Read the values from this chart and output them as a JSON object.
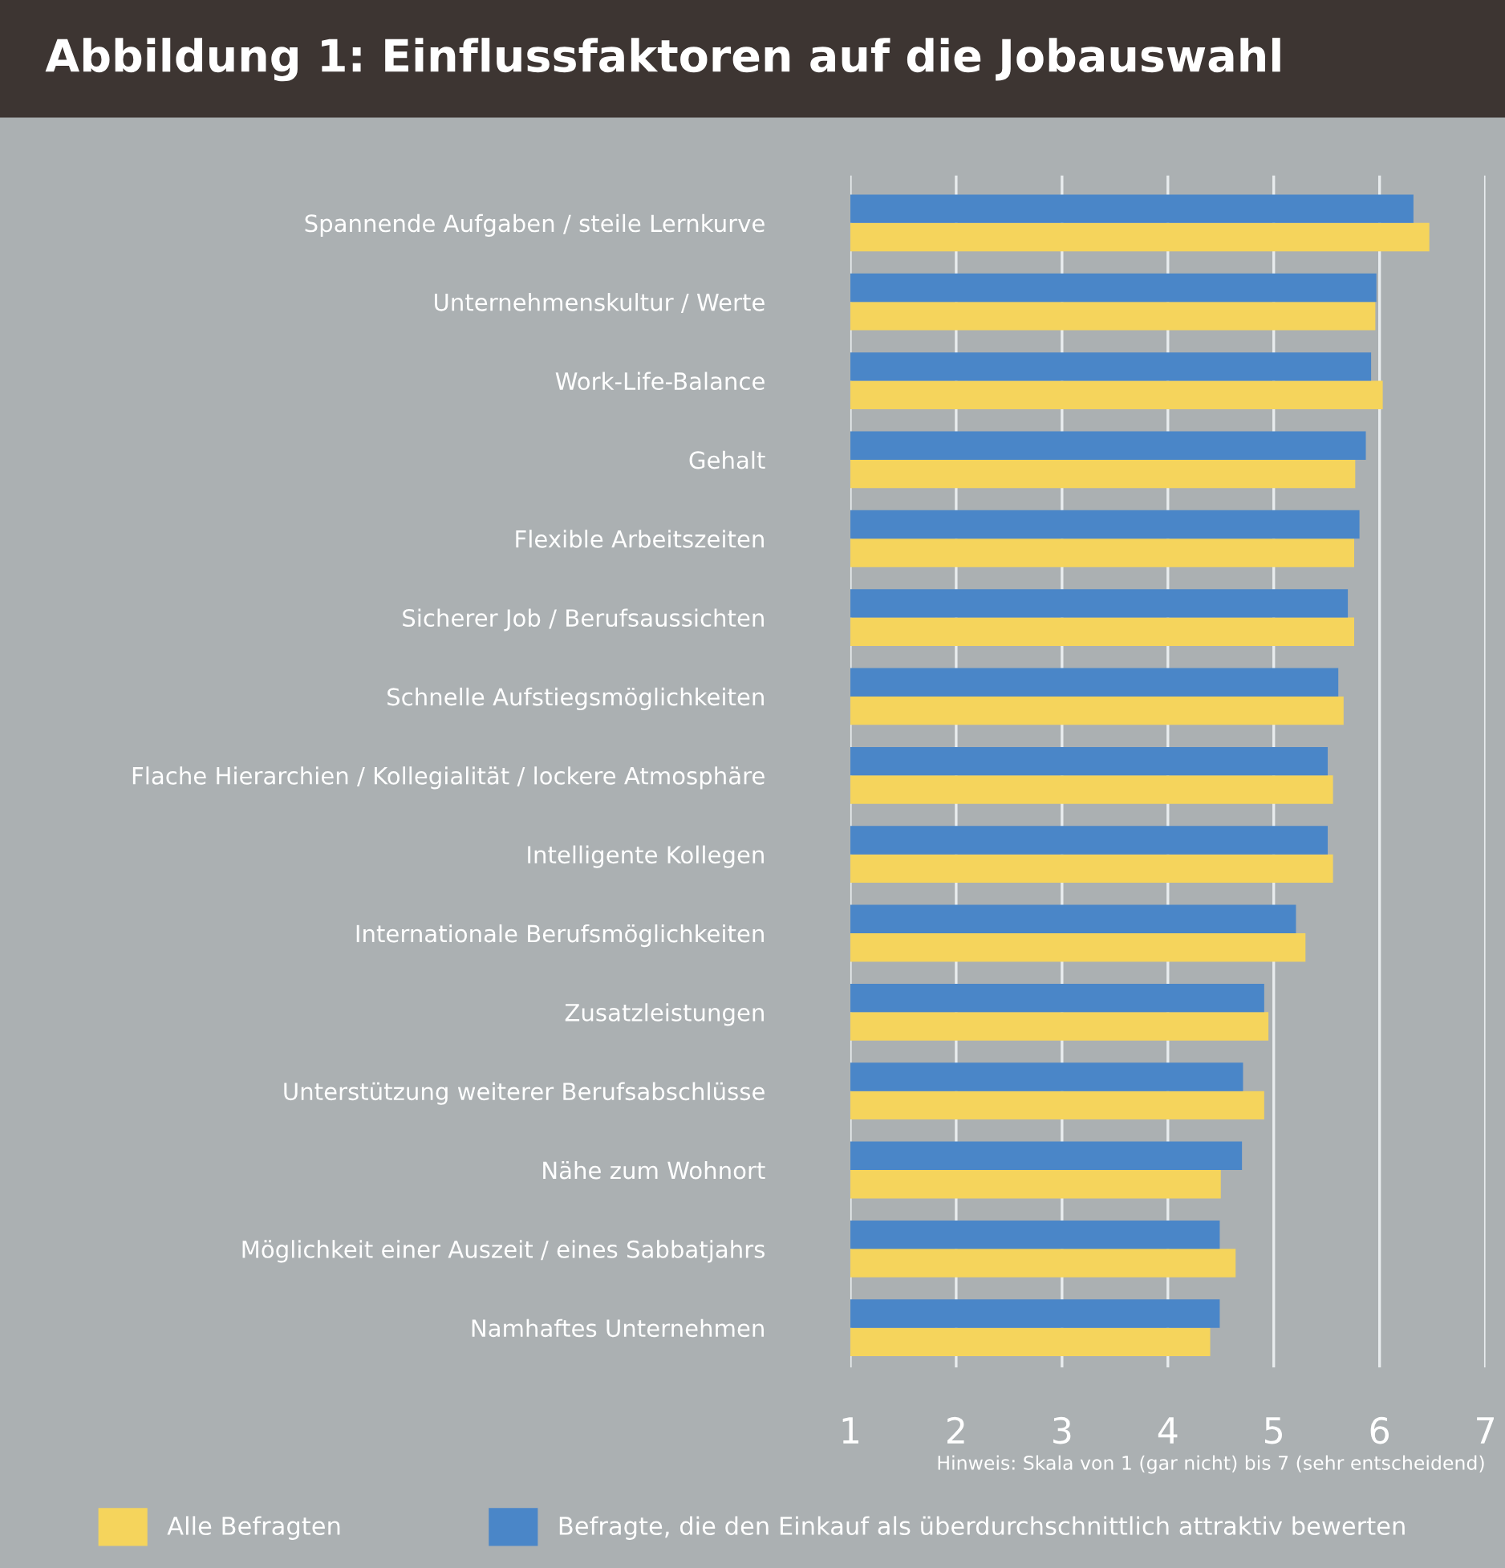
{
  "chart_data": {
    "type": "bar",
    "orientation": "horizontal",
    "title": "Abbildung 1: Einflussfaktoren auf die Jobauswahl",
    "categories": [
      "Spannende Aufgaben / steile Lernkurve",
      "Unternehmenskultur / Werte",
      "Work-Life-Balance",
      "Gehalt",
      "Flexible Arbeitszeiten",
      "Sicherer Job / Berufsaussichten",
      "Schnelle Aufstiegsmöglichkeiten",
      "Flache Hierarchien / Kollegialität / lockere Atmosphäre",
      "Intelligente Kollegen",
      "Internationale Berufsmöglichkeiten",
      "Zusatzleistungen",
      "Unterstützung weiterer Berufsabschlüsse",
      "Nähe zum Wohnort",
      "Möglichkeit einer Auszeit / eines Sabbatjahrs",
      "Namhaftes Unternehmen"
    ],
    "series": [
      {
        "name": "Alle Befragten",
        "color": "#f5d45c",
        "values": [
          6.47,
          5.96,
          6.03,
          5.77,
          5.76,
          5.76,
          5.66,
          5.56,
          5.56,
          5.3,
          4.95,
          4.91,
          4.5,
          4.64,
          4.4
        ]
      },
      {
        "name": "Befragte, die den Einkauf als überdurchschnittlich attraktiv bewerten",
        "color": "#4a86c8",
        "values": [
          6.32,
          5.97,
          5.92,
          5.87,
          5.81,
          5.7,
          5.61,
          5.51,
          5.51,
          5.21,
          4.91,
          4.71,
          4.7,
          4.49,
          4.49
        ]
      }
    ],
    "xlim": [
      1,
      7
    ],
    "xticks": [
      1,
      2,
      3,
      4,
      5,
      6,
      7
    ],
    "grid": "x",
    "legend": "bottom",
    "annotations": [
      "Hinweis: Skala von 1 (gar nicht) bis 7 (sehr entscheidend)"
    ]
  }
}
